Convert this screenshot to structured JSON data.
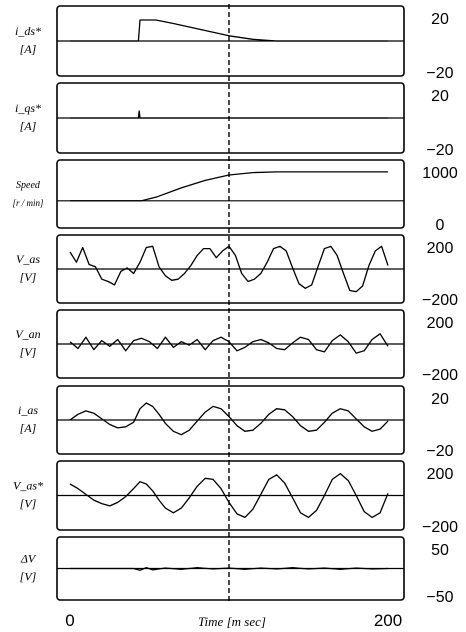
{
  "chart_data": {
    "type": "line",
    "xlabel": "Time [m sec]",
    "xlim": [
      0,
      200
    ],
    "x_ticks": [
      "0",
      "200"
    ],
    "vline_x": 100,
    "panels": [
      {
        "label_top": "i_ds*",
        "label_unit": "[A]",
        "ylim": [
          -20,
          20
        ],
        "ticks": [
          "20",
          "−20"
        ],
        "series": [
          {
            "x": [
              0,
              43,
              44,
              54,
              65,
              80,
              100,
              115,
              130,
              200
            ],
            "y": [
              0,
              0,
              12,
              12,
              10,
              7,
              3,
              1,
              0,
              0
            ]
          }
        ]
      },
      {
        "label_top": "i_qs*",
        "label_unit": "[A]",
        "ylim": [
          -20,
          20
        ],
        "ticks": [
          "20",
          "−20"
        ],
        "series": [
          {
            "x": [
              0,
              43,
              43.5,
              44,
              200
            ],
            "y": [
              0,
              0,
              4,
              0,
              0
            ]
          }
        ]
      },
      {
        "label_top": "Speed",
        "label_unit": "[r / min]",
        "ylim": [
          -800,
          1200
        ],
        "ticks": [
          "1000",
          "0"
        ],
        "series": [
          {
            "x": [
              0,
              45,
              55,
              70,
              85,
              100,
              115,
              130,
              200
            ],
            "y": [
              0,
              0,
              120,
              380,
              600,
              760,
              830,
              850,
              850
            ]
          }
        ]
      },
      {
        "label_top": "V_as",
        "label_unit": "[V]",
        "ylim": [
          -300,
          300
        ],
        "ticks": [
          "200",
          "−200"
        ],
        "series": [
          {
            "x": [
              0,
              4,
              8,
              12,
              16,
              20,
              24,
              28,
              32,
              36,
              40,
              44,
              48,
              52,
              56,
              60,
              64,
              68,
              72,
              76,
              80,
              84,
              88,
              92,
              96,
              100,
              104,
              108,
              112,
              116,
              120,
              124,
              128,
              132,
              136,
              140,
              144,
              148,
              152,
              156,
              160,
              164,
              168,
              172,
              176,
              180,
              184,
              188,
              192,
              196,
              200
            ],
            "y": [
              150,
              60,
              190,
              40,
              20,
              -90,
              -110,
              -140,
              -20,
              10,
              -40,
              60,
              190,
              200,
              20,
              -60,
              -100,
              -90,
              -40,
              30,
              120,
              180,
              180,
              100,
              160,
              200,
              120,
              -40,
              -110,
              -90,
              -40,
              60,
              180,
              200,
              160,
              10,
              -130,
              -170,
              -140,
              20,
              180,
              200,
              120,
              -40,
              -190,
              -200,
              -150,
              30,
              160,
              200,
              30
            ]
          }
        ]
      },
      {
        "label_top": "V_an",
        "label_unit": "[V]",
        "ylim": [
          -300,
          300
        ],
        "ticks": [
          "200",
          "−200"
        ],
        "series": [
          {
            "x": [
              0,
              5,
              10,
              15,
              20,
              25,
              30,
              35,
              40,
              45,
              50,
              55,
              60,
              65,
              70,
              75,
              80,
              85,
              90,
              95,
              100,
              105,
              110,
              115,
              120,
              125,
              130,
              135,
              140,
              145,
              150,
              155,
              160,
              165,
              170,
              175,
              180,
              185,
              190,
              195,
              200
            ],
            "y": [
              20,
              -40,
              60,
              -50,
              30,
              -20,
              40,
              -60,
              30,
              50,
              20,
              -40,
              60,
              -30,
              20,
              -10,
              40,
              -50,
              30,
              60,
              20,
              -60,
              -30,
              20,
              40,
              10,
              -40,
              -50,
              10,
              60,
              40,
              -50,
              -70,
              30,
              80,
              20,
              -80,
              -60,
              40,
              90,
              -20
            ]
          }
        ]
      },
      {
        "label_top": "i_as",
        "label_unit": "[A]",
        "ylim": [
          -30,
          30
        ],
        "ticks": [
          "20",
          "−20"
        ],
        "series": [
          {
            "x": [
              0,
              5,
              10,
              15,
              20,
              25,
              30,
              35,
              40,
              44,
              48,
              52,
              56,
              60,
              65,
              70,
              75,
              80,
              85,
              90,
              95,
              100,
              105,
              110,
              115,
              120,
              125,
              130,
              135,
              140,
              145,
              150,
              155,
              160,
              165,
              170,
              175,
              180,
              185,
              190,
              195,
              200
            ],
            "y": [
              0,
              5,
              8,
              6,
              1,
              -4,
              -7,
              -6,
              -2,
              10,
              15,
              12,
              5,
              -3,
              -10,
              -13,
              -9,
              -1,
              7,
              12,
              10,
              3,
              -5,
              -10,
              -9,
              -3,
              5,
              10,
              9,
              3,
              -5,
              -10,
              -9,
              -2,
              6,
              10,
              8,
              1,
              -6,
              -10,
              -8,
              -1
            ]
          }
        ]
      },
      {
        "label_top": "V_as*",
        "label_unit": "[V]",
        "ylim": [
          -300,
          300
        ],
        "ticks": [
          "200",
          "−200"
        ],
        "series": [
          {
            "x": [
              0,
              5,
              10,
              15,
              20,
              25,
              30,
              35,
              40,
              44,
              48,
              52,
              56,
              60,
              65,
              70,
              75,
              80,
              85,
              90,
              95,
              100,
              105,
              110,
              115,
              120,
              125,
              130,
              135,
              140,
              145,
              150,
              155,
              160,
              165,
              170,
              175,
              180,
              185,
              190,
              195,
              200
            ],
            "y": [
              100,
              60,
              10,
              -40,
              -70,
              -90,
              -60,
              -10,
              60,
              120,
              100,
              40,
              -40,
              -110,
              -150,
              -110,
              -20,
              80,
              150,
              140,
              60,
              -60,
              -160,
              -190,
              -120,
              10,
              140,
              180,
              110,
              -20,
              -150,
              -190,
              -130,
              0,
              140,
              190,
              130,
              0,
              -140,
              -190,
              -150,
              20
            ]
          }
        ]
      },
      {
        "label_top": "ΔV",
        "label_unit": "[V]",
        "ylim": [
          -70,
          70
        ],
        "ticks": [
          "50",
          "−50"
        ],
        "series": [
          {
            "x": [
              0,
              40,
              44,
              48,
              52,
              60,
              70,
              80,
              90,
              100,
              110,
              120,
              130,
              140,
              150,
              160,
              170,
              180,
              190,
              200
            ],
            "y": [
              0,
              0,
              -4,
              2,
              -3,
              1,
              -2,
              2,
              -1,
              1,
              -2,
              1,
              -1,
              2,
              -1,
              1,
              -2,
              1,
              -1,
              0
            ]
          }
        ]
      }
    ]
  }
}
